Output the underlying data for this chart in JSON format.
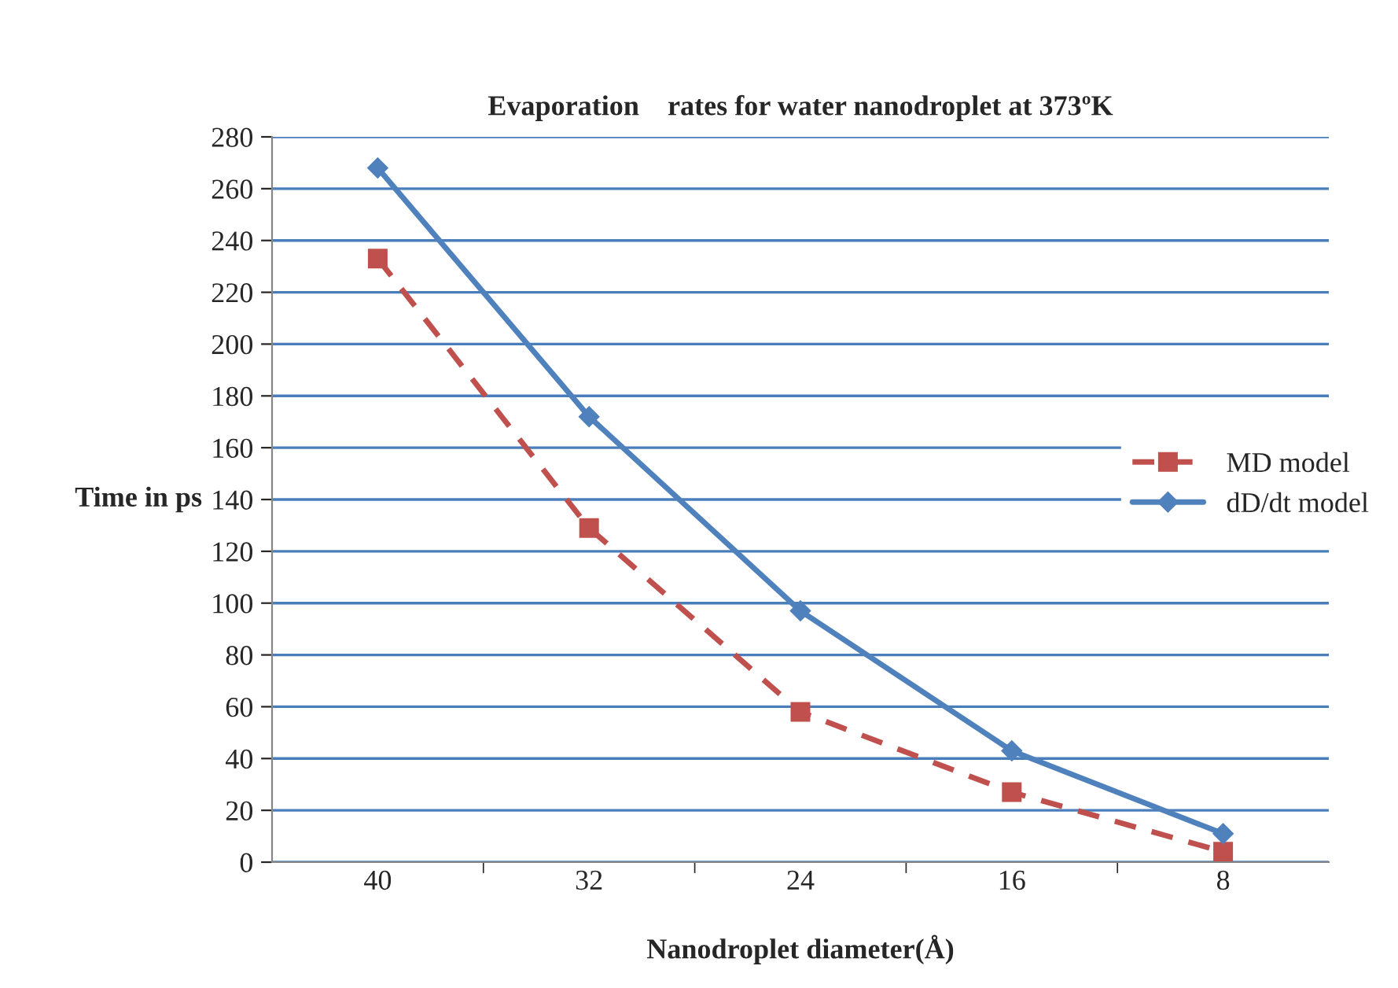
{
  "chart_data": {
    "type": "line",
    "title": "Evaporation    rates for water nanodroplet at 373ºK",
    "xlabel": "Nanodroplet diameter(Å)",
    "ylabel": "Time in ps",
    "categories": [
      "40",
      "32",
      "24",
      "16",
      "8"
    ],
    "series": [
      {
        "name": "MD model",
        "color": "#c0504d",
        "values": [
          233,
          129,
          58,
          27,
          4
        ],
        "marker": "square",
        "line_style": "dashed"
      },
      {
        "name": "dD/dt model",
        "color": "#4f81bd",
        "values": [
          268,
          172,
          97,
          43,
          11
        ],
        "marker": "diamond",
        "line_style": "solid"
      }
    ],
    "ylim": [
      0,
      280
    ],
    "yticks": [
      0,
      20,
      40,
      60,
      80,
      100,
      120,
      140,
      160,
      180,
      200,
      220,
      240,
      260,
      280
    ],
    "grid": "y",
    "legend": "right"
  }
}
